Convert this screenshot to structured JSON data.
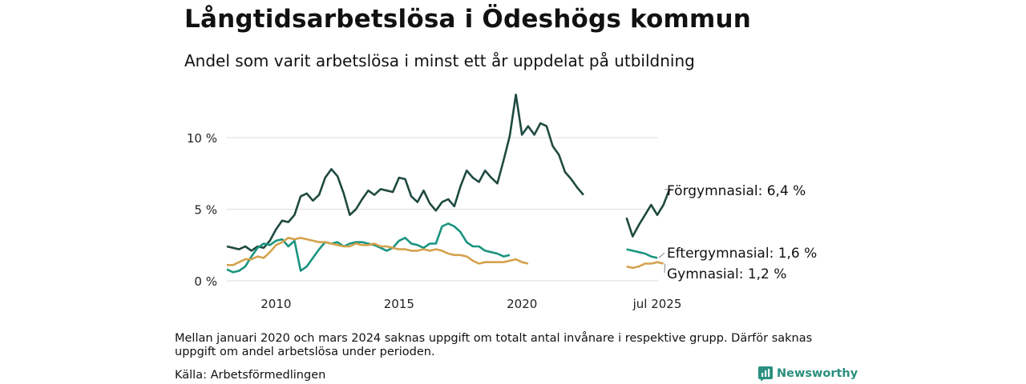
{
  "title": "Långtidsarbetslösa i Ödeshögs kommun",
  "subtitle": "Andel som varit arbetslösa i minst ett år uppdelat på utbildning",
  "note": "Mellan januari 2020 och mars 2024 saknas uppgift om totalt antal invånare i respektive grupp. Därför saknas uppgift om andel arbetslösa under perioden.",
  "source": "Källa: Arbetsförmedlingen",
  "brand": "Newsworthy",
  "colors": {
    "forgymnasial": "#1f4a40",
    "eftergymnasial": "#1a9480",
    "gymnasial": "#d4a24c",
    "grid": "#dedede",
    "brand": "#2a8f7f"
  },
  "chart_data": {
    "type": "line",
    "ylim": [
      0,
      14
    ],
    "yticks": [
      {
        "value": 0,
        "label": "0 %"
      },
      {
        "value": 5,
        "label": "5 %"
      },
      {
        "value": 10,
        "label": "10 %"
      }
    ],
    "xticks": [
      {
        "value": 2010.0,
        "label": "2010"
      },
      {
        "value": 2015.0,
        "label": "2015"
      },
      {
        "value": 2020.0,
        "label": "2020"
      },
      {
        "value": 2025.5,
        "label": "jul 2025"
      }
    ],
    "series": [
      {
        "key": "forgymnasial",
        "label": "Förgymnasial: 6,4 %",
        "segments": [
          {
            "start": 2008.0,
            "step": 0.25,
            "values": [
              2.4,
              2.3,
              2.2,
              2.4,
              2.1,
              2.4,
              2.3,
              2.8,
              3.6,
              4.2,
              4.1,
              4.6,
              5.9,
              6.1,
              5.6,
              6.0,
              7.2,
              7.8,
              7.3,
              6.1,
              4.6,
              5.0,
              5.7,
              6.3,
              6.0,
              6.4,
              6.3,
              6.2,
              7.2,
              7.1,
              5.9,
              5.5,
              6.3,
              5.4,
              4.9,
              5.5,
              5.7,
              5.2,
              6.6,
              7.7,
              7.2,
              6.9,
              7.7,
              7.2,
              6.8,
              8.4,
              10.1,
              13.0,
              10.2,
              10.8,
              10.2,
              11.0,
              10.8,
              9.4,
              8.8,
              7.6,
              7.1,
              6.5,
              6.0
            ]
          },
          {
            "start": 2024.25,
            "step": 0.25,
            "values": [
              4.4,
              3.1,
              3.9,
              4.6,
              5.3,
              4.6,
              5.3,
              6.4
            ]
          }
        ]
      },
      {
        "key": "eftergymnasial",
        "label": "Eftergymnasial: 1,6 %",
        "segments": [
          {
            "start": 2008.0,
            "step": 0.25,
            "values": [
              0.8,
              0.6,
              0.7,
              1.0,
              1.7,
              2.3,
              2.6,
              2.5,
              2.8,
              2.9,
              2.4,
              2.8,
              0.7,
              1.0,
              1.6,
              2.2,
              2.7,
              2.6,
              2.7,
              2.4,
              2.6,
              2.7,
              2.7,
              2.6,
              2.5,
              2.3,
              2.1,
              2.3,
              2.8,
              3.0,
              2.6,
              2.5,
              2.3,
              2.6,
              2.6,
              3.8,
              4.0,
              3.8,
              3.4,
              2.7,
              2.4,
              2.4,
              2.1,
              2.0,
              1.9,
              1.7,
              1.8
            ]
          },
          {
            "start": 2024.25,
            "step": 0.25,
            "values": [
              2.2,
              2.1,
              2.0,
              1.9,
              1.7,
              1.6
            ]
          }
        ]
      },
      {
        "key": "gymnasial",
        "label": "Gymnasial: 1,2 %",
        "segments": [
          {
            "start": 2008.0,
            "step": 0.25,
            "values": [
              1.1,
              1.1,
              1.3,
              1.5,
              1.5,
              1.7,
              1.6,
              2.0,
              2.5,
              2.7,
              3.0,
              2.9,
              3.0,
              2.9,
              2.8,
              2.7,
              2.7,
              2.6,
              2.5,
              2.4,
              2.4,
              2.6,
              2.5,
              2.5,
              2.6,
              2.4,
              2.4,
              2.3,
              2.2,
              2.2,
              2.1,
              2.1,
              2.2,
              2.1,
              2.2,
              2.1,
              1.9,
              1.8,
              1.8,
              1.7,
              1.4,
              1.2,
              1.3,
              1.3,
              1.3,
              1.3,
              1.4,
              1.5,
              1.3,
              1.2
            ]
          },
          {
            "start": 2024.25,
            "step": 0.25,
            "values": [
              1.0,
              0.9,
              1.0,
              1.2,
              1.2,
              1.3,
              1.2
            ]
          }
        ]
      }
    ]
  }
}
